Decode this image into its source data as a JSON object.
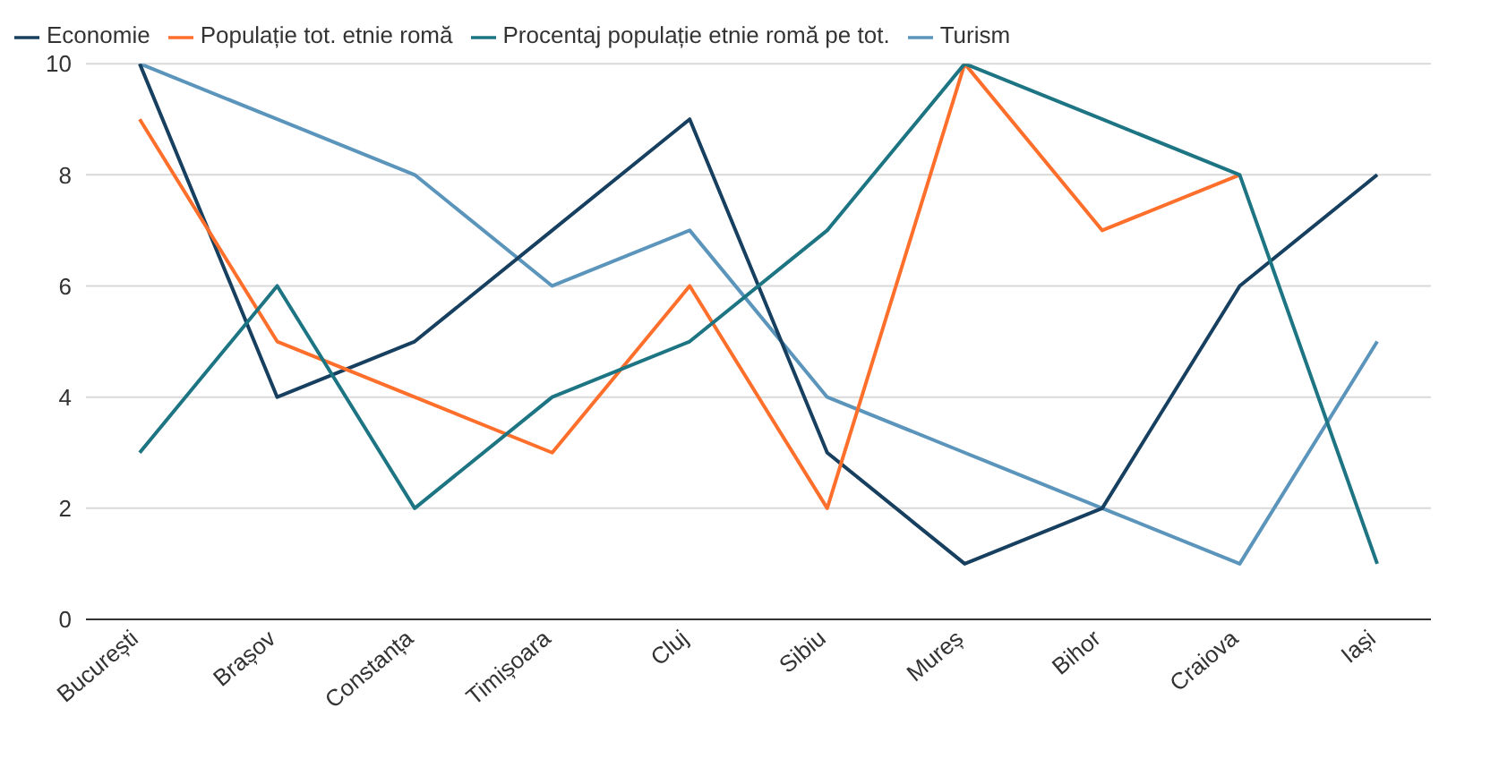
{
  "chart_data": {
    "type": "line",
    "categories": [
      "București",
      "Brașov",
      "Constanța",
      "Timișoara",
      "Cluj",
      "Sibiu",
      "Mureș",
      "Bihor",
      "Craiova",
      "Iași"
    ],
    "series": [
      {
        "name": "Turism",
        "color": "#5b95bb",
        "values": [
          10,
          9,
          8,
          6,
          7,
          4,
          3,
          2,
          1,
          5
        ]
      },
      {
        "name": "Economie",
        "color": "#173f5f",
        "values": [
          10,
          4,
          5,
          7,
          9,
          3,
          1,
          2,
          6,
          8
        ]
      },
      {
        "name": "Populație tot. etnie romă",
        "color": "#ff6f2c",
        "values": [
          9,
          5,
          4,
          3,
          6,
          2,
          10,
          7,
          8,
          null
        ]
      },
      {
        "name": "Procentaj populație etnie romă pe tot.",
        "color": "#1d7583",
        "values": [
          3,
          6,
          2,
          4,
          5,
          7,
          10,
          9,
          8,
          1
        ]
      }
    ],
    "ylim": [
      0,
      10
    ],
    "yticks": [
      0,
      2,
      4,
      6,
      8,
      10
    ],
    "grid": "y",
    "legend": "top left",
    "marker": "none",
    "line_style": "solid"
  }
}
